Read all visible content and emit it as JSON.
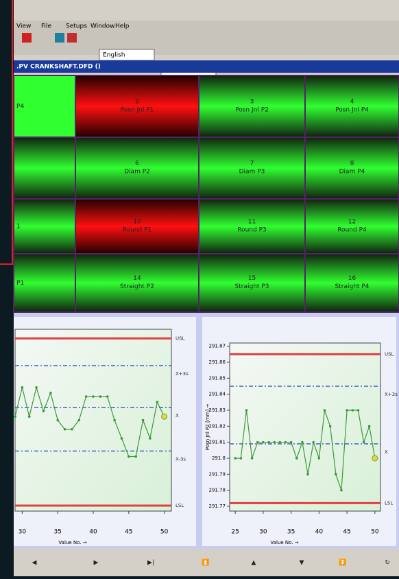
{
  "menu": [
    "View",
    "File",
    "Setups",
    "Window",
    "Help"
  ],
  "toolbar": {
    "language": "English"
  },
  "window_title": ".PV CRANKSHAFT.DFD ()",
  "tiles": [
    {
      "name": "P4",
      "status": "ok"
    },
    {
      "number": "2",
      "name": "Posn Jnl P1",
      "status": "alarm"
    },
    {
      "number": "3",
      "name": "Posn Jnl P2",
      "status": "ok"
    },
    {
      "number": "4",
      "name": "Posn Jnl P4",
      "status": "ok"
    },
    {
      "status": "ok"
    },
    {
      "number": "6",
      "name": "Diam P2",
      "status": "ok"
    },
    {
      "number": "7",
      "name": "Diam P3",
      "status": "ok"
    },
    {
      "number": "8",
      "name": "Diam P4",
      "status": "ok"
    },
    {
      "name": "1",
      "status": "ok"
    },
    {
      "number": "10",
      "name": "Round P1",
      "status": "alarm"
    },
    {
      "number": "11",
      "name": "Round P3",
      "status": "ok"
    },
    {
      "number": "12",
      "name": "Round P4",
      "status": "ok"
    },
    {
      "name": "P1",
      "status": "ok"
    },
    {
      "number": "14",
      "name": "Straight P2",
      "status": "ok"
    },
    {
      "number": "15",
      "name": "Straight P3",
      "status": "ok"
    },
    {
      "number": "16",
      "name": "Straight P4",
      "status": "ok"
    }
  ],
  "chart_data": [
    {
      "type": "line",
      "xlabel": "Value No. →",
      "x": [
        29,
        30,
        31,
        32,
        33,
        34,
        35,
        36,
        37,
        38,
        39,
        40,
        41,
        42,
        43,
        44,
        45,
        46,
        47,
        48,
        49,
        50
      ],
      "series": [
        {
          "color": "#3a9a3a",
          "values": [
            5.2,
            6.8,
            5.2,
            6.8,
            5.5,
            6.5,
            5,
            4.5,
            4.5,
            5,
            6.3,
            6.3,
            6.3,
            6.3,
            5,
            4,
            3,
            3,
            5,
            4,
            6,
            5.2
          ]
        }
      ],
      "xlim": [
        29,
        51
      ],
      "xticks": [
        30,
        35,
        40,
        45,
        50
      ],
      "ylim": [
        0,
        10
      ],
      "limits": [
        {
          "label": "USL",
          "value": 9.5,
          "color": "#e04040"
        },
        {
          "label": "X+3s",
          "value": 8,
          "color": "#4060c0"
        },
        {
          "label": "X",
          "value": 5.7,
          "color": "#4060c0"
        },
        {
          "label": "X-3s",
          "value": 3.3,
          "color": "#4060c0"
        },
        {
          "label": "LSL",
          "value": 0.3,
          "color": "#e04040"
        }
      ]
    },
    {
      "type": "line",
      "xlabel": "Value No. →",
      "ylabel": "Posn Jnl P2 [mm] →",
      "x": [
        25,
        26,
        27,
        28,
        29,
        30,
        31,
        32,
        33,
        34,
        35,
        36,
        37,
        38,
        39,
        40,
        41,
        42,
        43,
        44,
        45,
        46,
        47,
        48,
        49,
        50
      ],
      "series": [
        {
          "color": "#3a9a3a",
          "values": [
            291.8,
            291.8,
            291.83,
            291.8,
            291.81,
            291.81,
            291.81,
            291.81,
            291.81,
            291.81,
            291.81,
            291.8,
            291.81,
            291.79,
            291.81,
            291.8,
            291.83,
            291.82,
            291.79,
            291.78,
            291.83,
            291.83,
            291.83,
            291.81,
            291.82,
            291.8
          ]
        }
      ],
      "xlim": [
        24,
        51
      ],
      "xticks": [
        25,
        30,
        35,
        40,
        45,
        50
      ],
      "ylim": [
        291.767,
        291.872
      ],
      "yticks": [
        291.77,
        291.78,
        291.79,
        291.8,
        291.81,
        291.82,
        291.83,
        291.84,
        291.85,
        291.86,
        291.87
      ],
      "limits": [
        {
          "label": "USL",
          "value": 291.865,
          "color": "#e04040"
        },
        {
          "label": "X+3s",
          "value": 291.845,
          "color": "#4060c0"
        },
        {
          "label": "X",
          "value": 291.809,
          "color": "#4060c0"
        },
        {
          "label": "LSL",
          "value": 291.772,
          "color": "#e04040"
        }
      ]
    }
  ]
}
